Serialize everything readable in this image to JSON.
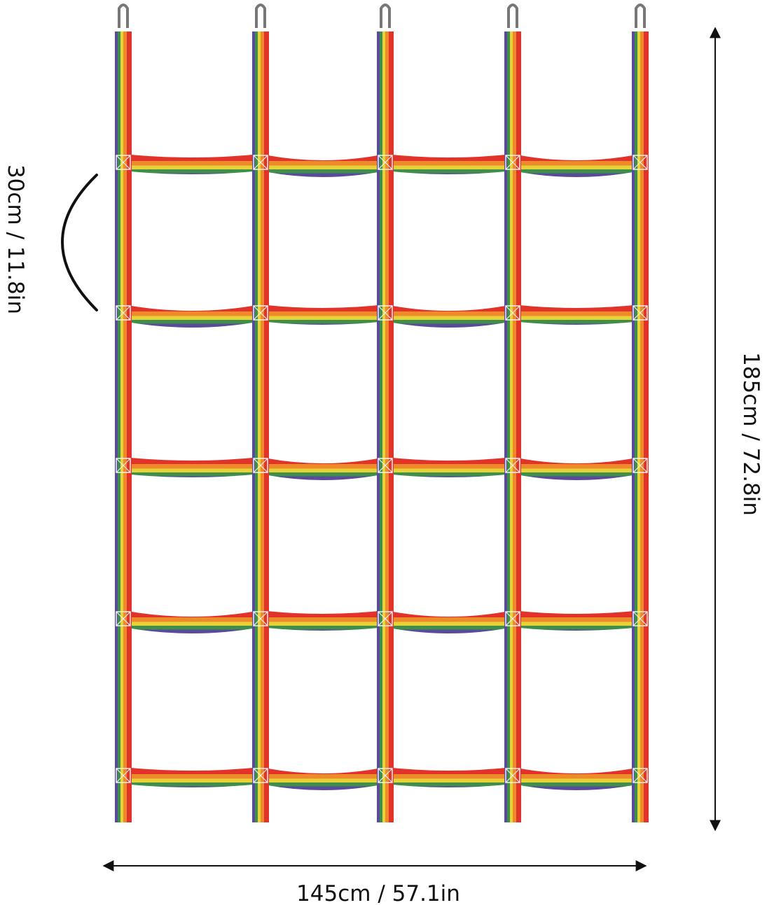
{
  "annotations": {
    "loop_length": "30cm / 11.8in",
    "height": "185cm / 72.8in",
    "width": "145cm / 57.1in"
  }
}
